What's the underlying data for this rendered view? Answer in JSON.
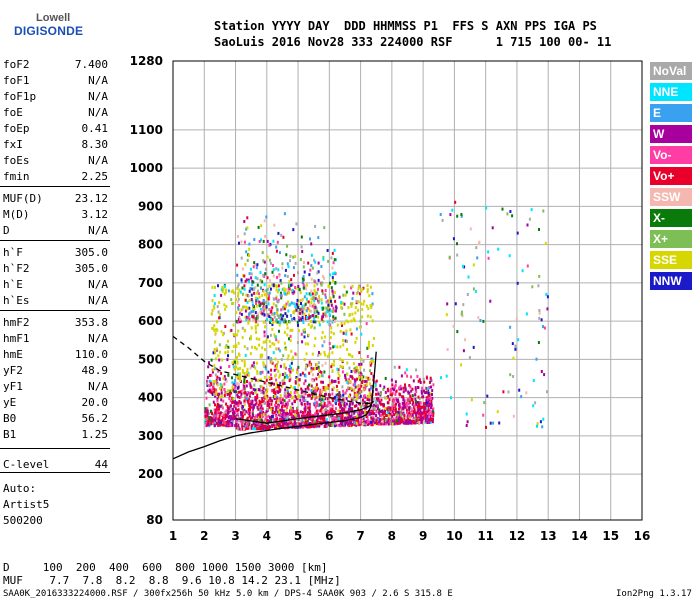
{
  "logo": {
    "company": "Lowell",
    "product": "DIGISONDE"
  },
  "header": {
    "line1": "Station YYYY DAY  DDD HHMMSS P1  FFS S AXN PPS IGA PS",
    "line2": "SaoLuis 2016 Nov28 333 224000 RSF      1 715 100 00- 11"
  },
  "params": [
    {
      "k": "foF2",
      "v": "7.400"
    },
    {
      "k": "foF1",
      "v": "N/A"
    },
    {
      "k": "foF1p",
      "v": "N/A"
    },
    {
      "k": "foE",
      "v": "N/A"
    },
    {
      "k": "foEp",
      "v": "0.41"
    },
    {
      "k": "fxI",
      "v": "8.30"
    },
    {
      "k": "foEs",
      "v": "N/A"
    },
    {
      "k": "fmin",
      "v": "2.25"
    },
    {
      "k": "MUF(D)",
      "v": "23.12"
    },
    {
      "k": "M(D)",
      "v": "3.12"
    },
    {
      "k": "D",
      "v": "N/A"
    },
    {
      "k": "h`F",
      "v": "305.0"
    },
    {
      "k": "h`F2",
      "v": "305.0"
    },
    {
      "k": "h`E",
      "v": "N/A"
    },
    {
      "k": "h`Es",
      "v": "N/A"
    },
    {
      "k": "hmF2",
      "v": "353.8"
    },
    {
      "k": "hmF1",
      "v": "N/A"
    },
    {
      "k": "hmE",
      "v": "110.0"
    },
    {
      "k": "yF2",
      "v": "48.9"
    },
    {
      "k": "yF1",
      "v": "N/A"
    },
    {
      "k": "yE",
      "v": "20.0"
    },
    {
      "k": "B0",
      "v": "56.2"
    },
    {
      "k": "B1",
      "v": "1.25"
    },
    {
      "k": "C-level",
      "v": "44"
    }
  ],
  "auto": {
    "l1": "Auto:",
    "l2": "Artist5",
    "l3": "500200"
  },
  "legend": [
    {
      "label": "NoVal",
      "color": "#a9a9a9"
    },
    {
      "label": "NNE",
      "color": "#00e5ff"
    },
    {
      "label": "E",
      "color": "#3aa0f0"
    },
    {
      "label": "W",
      "color": "#a8009c"
    },
    {
      "label": "Vo-",
      "color": "#ff3da5"
    },
    {
      "label": "Vo+",
      "color": "#e8002a"
    },
    {
      "label": "SSW",
      "color": "#f4b8b0"
    },
    {
      "label": "X-",
      "color": "#0a7a0a"
    },
    {
      "label": "X+",
      "color": "#7dbf55"
    },
    {
      "label": "SSE",
      "color": "#d6d600"
    },
    {
      "label": "NNW",
      "color": "#1a1ac8"
    }
  ],
  "footer": {
    "d_line": "D     100  200  400  600  800 1000 1500 3000 [km]",
    "muf_line": "MUF    7.7  7.8  8.2  8.8  9.6 10.8 14.2 23.1 [MHz]",
    "file_line": "SAA0K_2016333224000.RSF / 300fx256h 50 kHz 5.0 km / DPS-4 SAA0K 903 / 2.6 S 315.8 E",
    "version": "Ion2Png 1.3.17"
  },
  "chart_data": {
    "type": "scatter",
    "xlim": [
      1,
      16
    ],
    "ylim": [
      80,
      1280
    ],
    "x_ticks": [
      "1",
      "2",
      "3",
      "4",
      "5",
      "6",
      "7",
      "8",
      "9",
      "10",
      "11",
      "12",
      "13",
      "14",
      "15",
      "16"
    ],
    "y_ticks": [
      "80",
      "200",
      "300",
      "400",
      "500",
      "600",
      "700",
      "800",
      "900",
      "1000",
      "1100",
      "1280"
    ],
    "y_tick_values": [
      80,
      200,
      300,
      400,
      500,
      600,
      700,
      800,
      900,
      1000,
      1100,
      1280
    ],
    "grid": true,
    "trace_curve": [
      [
        1,
        240
      ],
      [
        1.5,
        258
      ],
      [
        2,
        272
      ],
      [
        2.5,
        287
      ],
      [
        3,
        300
      ],
      [
        3.5,
        308
      ],
      [
        4,
        314
      ],
      [
        4.5,
        320
      ],
      [
        5,
        325
      ],
      [
        5.5,
        330
      ],
      [
        6,
        335
      ],
      [
        6.5,
        340
      ],
      [
        7,
        348
      ],
      [
        7.2,
        356
      ],
      [
        7.35,
        380
      ],
      [
        7.45,
        470
      ],
      [
        7.5,
        520
      ]
    ],
    "profile_curve": [
      [
        3,
        345
      ],
      [
        4,
        333
      ],
      [
        5,
        345
      ],
      [
        5.5,
        350
      ],
      [
        6,
        355
      ],
      [
        6.5,
        360
      ],
      [
        7,
        368
      ],
      [
        7.3,
        378
      ],
      [
        7.4,
        390
      ]
    ],
    "dashed_curve": [
      [
        1,
        560
      ],
      [
        1.5,
        530
      ],
      [
        2,
        495
      ],
      [
        2.5,
        470
      ],
      [
        3,
        460
      ],
      [
        4,
        440
      ],
      [
        5,
        420
      ],
      [
        6,
        400
      ],
      [
        7,
        385
      ],
      [
        7.4,
        385
      ]
    ]
  }
}
